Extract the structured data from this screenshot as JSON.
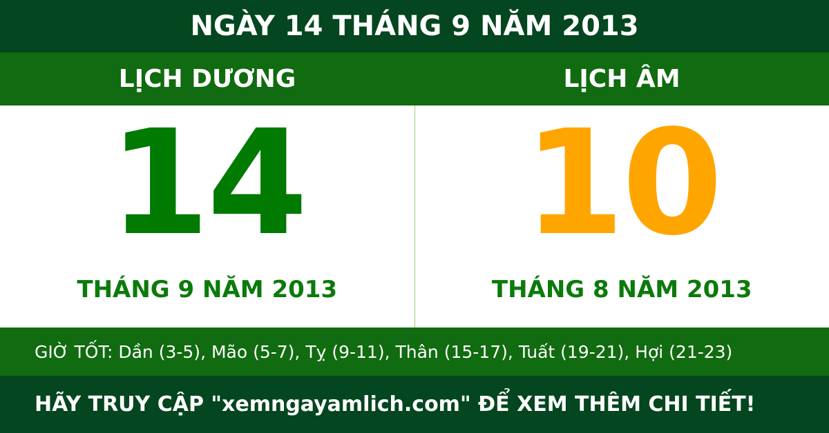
{
  "title": "NGÀY 14 THÁNG 9 NĂM 2013",
  "solar": {
    "label": "LỊCH DƯƠNG",
    "day": "14",
    "month_year": "THÁNG 9 NĂM 2013"
  },
  "lunar": {
    "label": "LỊCH ÂM",
    "day": "10",
    "month_year": "THÁNG 8 NĂM 2013"
  },
  "good_hours": "GIỜ TỐT: Dần (3-5), Mão (5-7), Tỵ (9-11), Thân (15-17), Tuất (19-21), Hợi (21-23)",
  "footer": "HÃY TRUY CẬP \"xemngayamlich.com\" ĐỂ XEM THÊM CHI TIẾT!",
  "colors": {
    "dark_green": "#04461f",
    "green": "#116b10",
    "solar_number": "#007a00",
    "lunar_number": "#ffa500"
  }
}
